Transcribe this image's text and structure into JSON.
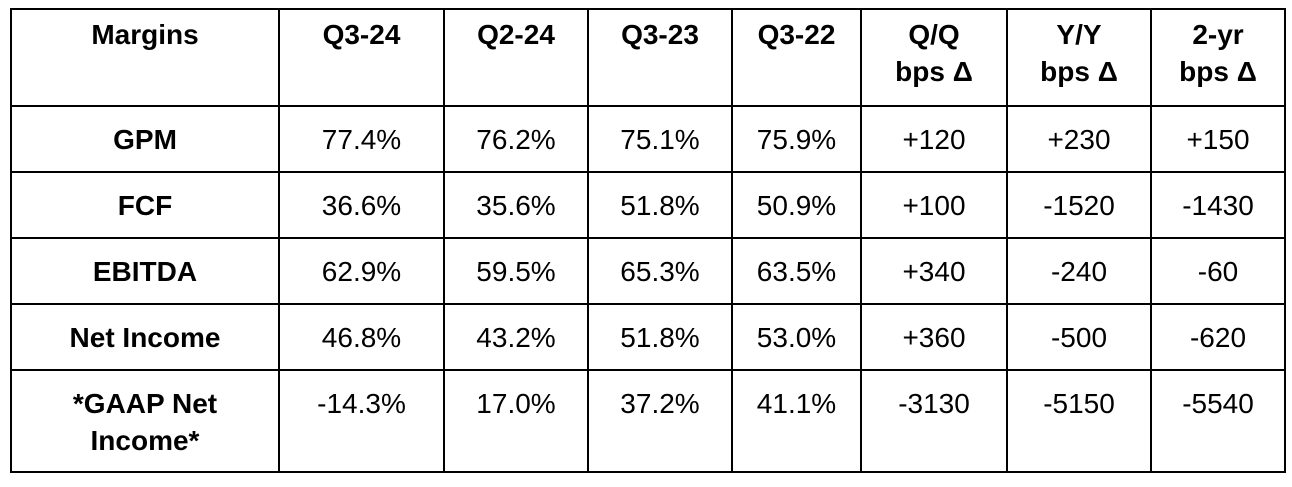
{
  "table": {
    "header": [
      "Margins",
      "Q3-24",
      "Q2-24",
      "Q3-23",
      "Q3-22",
      "Q/Q\nbps Δ",
      "Y/Y\nbps Δ",
      "2-yr\nbps Δ"
    ],
    "rows": [
      [
        "GPM",
        "77.4%",
        "76.2%",
        "75.1%",
        "75.9%",
        "+120",
        "+230",
        "+150"
      ],
      [
        "FCF",
        "36.6%",
        "35.6%",
        "51.8%",
        "50.9%",
        "+100",
        "-1520",
        "-1430"
      ],
      [
        "EBITDA",
        "62.9%",
        "59.5%",
        "65.3%",
        "63.5%",
        "+340",
        "-240",
        "-60"
      ],
      [
        "Net Income",
        "46.8%",
        "43.2%",
        "51.8%",
        "53.0%",
        "+360",
        "-500",
        "-620"
      ],
      [
        "*GAAP Net\nIncome*",
        "-14.3%",
        "17.0%",
        "37.2%",
        "41.1%",
        "-3130",
        "-5150",
        "-5540"
      ]
    ]
  }
}
